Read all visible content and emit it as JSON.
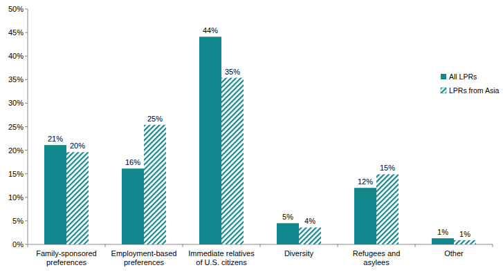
{
  "chart_data": {
    "type": "bar",
    "categories": [
      "Family-sponsored preferences",
      "Employment-based preferences",
      "Immediate relatives of U.S. citizens",
      "Diversity",
      "Refugees and asylees",
      "Other"
    ],
    "series": [
      {
        "name": "All LPRs",
        "color": "#12888e",
        "values": [
          21.1,
          16.1,
          44.1,
          4.5,
          12.0,
          1.3
        ],
        "value_labels": [
          "21%",
          "16%",
          "44%",
          "5%",
          "12%",
          "1%"
        ]
      },
      {
        "name": "LPRs from Asia",
        "color": "#12888e",
        "values": [
          19.6,
          25.4,
          35.4,
          3.6,
          14.9,
          0.9
        ],
        "value_labels": [
          "20%",
          "25%",
          "35%",
          "4%",
          "15%",
          "1%"
        ]
      }
    ],
    "ylim": [
      0,
      50
    ],
    "yticks": [
      {
        "value": 0,
        "label": "0%"
      },
      {
        "value": 5,
        "label": "5%"
      },
      {
        "value": 10,
        "label": "10%"
      },
      {
        "value": 15,
        "label": "15%"
      },
      {
        "value": 20,
        "label": "20%"
      },
      {
        "value": 25,
        "label": "25%"
      },
      {
        "value": 30,
        "label": "30%"
      },
      {
        "value": 35,
        "label": "35%"
      },
      {
        "value": 40,
        "label": "40%"
      },
      {
        "value": 45,
        "label": "45%"
      },
      {
        "value": 50,
        "label": "50%"
      }
    ],
    "grid": false,
    "legend": "right",
    "data_labels": true
  }
}
